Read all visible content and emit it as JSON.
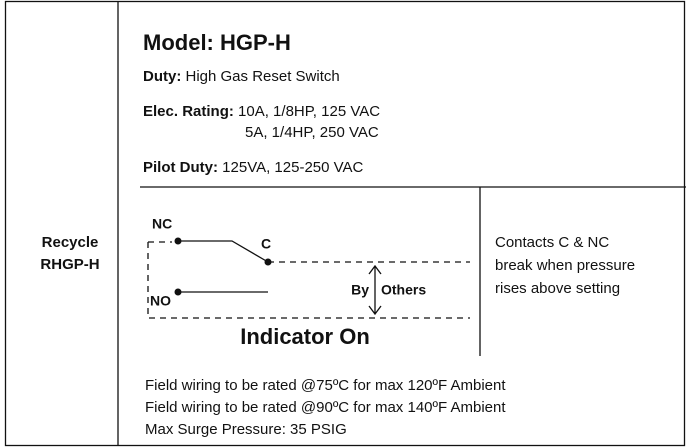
{
  "left_label": [
    "Recycle",
    "RHGP-H"
  ],
  "model": "Model: HGP-H",
  "duty": {
    "label": "Duty:",
    "value": "High Gas Reset Switch"
  },
  "elec_rating": {
    "label": "Elec. Rating:",
    "values": [
      "10A, 1/8HP, 125 VAC",
      "5A, 1/4HP, 250 VAC"
    ]
  },
  "pilot_duty": {
    "label": "Pilot Duty:",
    "value": "125VA, 125-250 VAC"
  },
  "diagram": {
    "nc": "NC",
    "c": "C",
    "no": "NO",
    "by": "By",
    "others": "Others",
    "caption": "Indicator On"
  },
  "note": [
    "Contacts C & NC",
    "break when pressure",
    "rises above setting"
  ],
  "footer": [
    "Field wiring to be rated @75ºC for max 120ºF Ambient",
    "Field wiring to be rated @90ºC for max 140ºF Ambient",
    "Max Surge Pressure: 35 PSIG"
  ]
}
